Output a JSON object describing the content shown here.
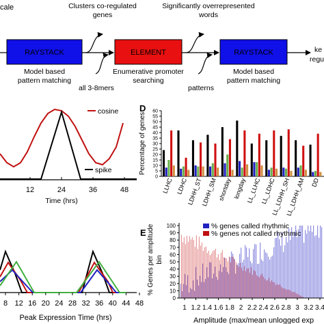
{
  "flow": {
    "top_left_text": "cale",
    "box1_label": "RAYSTACK",
    "box2_label": "ELEMENT",
    "box3_label": "RAYSTACK",
    "clusters_text_1": "Clusters co-regulated",
    "clusters_text_2": "genes",
    "overrep_text_1": "Significantly overrepresented",
    "overrep_text_2": "words",
    "model1_1": "Model based",
    "model1_2": "pattern matching",
    "enum_1": "Enumerative promoter",
    "enum_2": "searching",
    "model2_1": "Model based",
    "model2_2": "pattern matching",
    "mers_text": "all 3-8mers",
    "patterns_text": "patterns",
    "right_cut_1": "ke",
    "right_cut_2": "regul",
    "colors": {
      "raystack": "#1010e8",
      "element": "#e81010"
    }
  },
  "panel_c": {
    "legend_cosine": "cosine",
    "legend_spike": "spike",
    "xlabel": "Time (hrs)",
    "x_ticks": [
      "12",
      "24",
      "36",
      "48"
    ]
  },
  "panel_d": {
    "letter": "D",
    "ylabel": "Percentage of genes",
    "y_ticks": [
      "0",
      "5",
      "10",
      "15",
      "20",
      "25",
      "30",
      "35",
      "40",
      "45",
      "50",
      "55",
      "60"
    ],
    "categories": [
      "LLHC",
      "LDHC",
      "LDHH_ST",
      "LDHH_SM",
      "shortday",
      "longday",
      "LL_LLHC",
      "LL_LDHC",
      "LL_LDHH_SH",
      "LL_LDHH_AM",
      "DD"
    ]
  },
  "panel_peak": {
    "xlabel": "Peak Expression Time (hrs)",
    "x_ticks": [
      "8",
      "12",
      "16",
      "20",
      "24",
      "28",
      "32",
      "36",
      "40",
      "44",
      "48"
    ]
  },
  "panel_e": {
    "letter": "E",
    "ylabel_1": "% Genes per amplitude",
    "ylabel_2": "bin",
    "legend_rhythmic": "% genes called rhythmic",
    "legend_not": "% genes not called rhythmic",
    "y_ticks": [
      "0",
      "10",
      "20",
      "30",
      "40",
      "50",
      "60",
      "70",
      "80",
      "90",
      "100"
    ],
    "x_ticks": [
      "1",
      "1.2",
      "1.4",
      "1.6",
      "1.8",
      "2",
      "2.2",
      "2.4",
      "2.6",
      "2.8",
      "3",
      "3.2",
      "3.4"
    ],
    "xlabel": "Amplitude (max/mean unlogged exp"
  },
  "chart_data": [
    {
      "type": "bar",
      "categories": [
        "LLHC",
        "LDHC",
        "LDHH_ST",
        "LDHH_SM",
        "shortday",
        "longday",
        "LL_LLHC",
        "LL_LDHC",
        "LL_LDHH_SH",
        "LL_LDHH_AM",
        "DD"
      ],
      "series": [
        {
          "color": "#000000",
          "values": [
            24,
            42,
            33,
            38,
            45,
            51,
            30,
            33,
            37,
            33,
            29
          ]
        },
        {
          "color": "#2020c0",
          "values": [
            8,
            7,
            10,
            9,
            12,
            14,
            13,
            6,
            8,
            8,
            4
          ]
        },
        {
          "color": "#6ab04c",
          "values": [
            15,
            9,
            9,
            12,
            20,
            8,
            13,
            8,
            7,
            10,
            5
          ]
        },
        {
          "color": "#d01010",
          "values": [
            42,
            17,
            31,
            30,
            34,
            42,
            39,
            42,
            43,
            28,
            39
          ]
        },
        {
          "color": "#d09040",
          "values": [
            10,
            6,
            9,
            8,
            6,
            11,
            10,
            7,
            5,
            6,
            4
          ]
        }
      ],
      "ylim": [
        0,
        60
      ]
    }
  ]
}
